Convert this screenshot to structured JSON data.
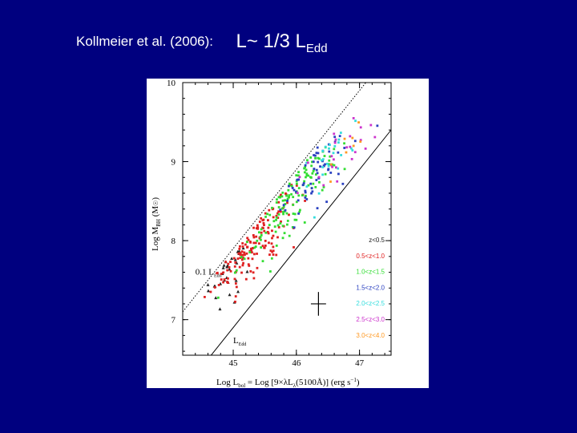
{
  "slide": {
    "citation": "Kollmeier et al. (2006):",
    "relation_main": "L~ 1/3 L",
    "relation_sub": "Edd"
  },
  "chart_data": {
    "type": "scatter",
    "xlabel": "Log Lbol = Log [9×λLλ(5100Å)]  (erg s⁻¹)",
    "xlabel_parts": {
      "pre": "Log L",
      "sub1": "bol",
      "mid": " = Log [9×λL",
      "sub2": "λ",
      "post": "(5100Å)]     (erg s",
      "sup": "−1",
      "end": ")"
    },
    "ylabel": "Log MBH (M☉)",
    "ylabel_parts": {
      "pre": "Log M",
      "sub": "BH",
      "post": " (M",
      "sun": "☉",
      "end": ")"
    },
    "xlim": [
      44.2,
      47.5
    ],
    "ylim": [
      6.55,
      10.0
    ],
    "xticks": [
      45,
      46,
      47
    ],
    "yticks": [
      7,
      8,
      9,
      10
    ],
    "lines": [
      {
        "name": "L_Edd",
        "x": [
          44.2,
          47.5
        ],
        "y": [
          6.1,
          9.4
        ],
        "style": "solid"
      },
      {
        "name": "0.1 L_Edd",
        "x": [
          44.2,
          47.5
        ],
        "y": [
          7.1,
          10.4
        ],
        "style": "dotted"
      }
    ],
    "line_labels": [
      {
        "text": "0.1 L",
        "sub": "Edd",
        "x": 44.4,
        "y": 7.57
      },
      {
        "text": "L",
        "sub": "Edd",
        "x": 45.0,
        "y": 6.7
      }
    ],
    "legend_position": "lower-right",
    "error_bar": {
      "x": 46.35,
      "y": 7.2,
      "xerr": 0.12,
      "yerr": 0.15
    },
    "series": [
      {
        "name": "z<0.5",
        "color": "#222222",
        "marker": "triangle",
        "n": 30,
        "cx": 44.95,
        "cy": 7.55,
        "sx": 0.22,
        "sy": 0.42,
        "slope": 0.6
      },
      {
        "name": "0.5<z<1.0",
        "color": "#e02020",
        "marker": "square",
        "n": 150,
        "cx": 45.35,
        "cy": 8.05,
        "sx": 0.35,
        "sy": 0.45,
        "slope": 0.7
      },
      {
        "name": "1.0<z<1.5",
        "color": "#33dd33",
        "marker": "square",
        "n": 130,
        "cx": 45.95,
        "cy": 8.55,
        "sx": 0.35,
        "sy": 0.45,
        "slope": 0.75
      },
      {
        "name": "1.5<z<2.0",
        "color": "#2a40c0",
        "marker": "square",
        "n": 60,
        "cx": 46.3,
        "cy": 8.85,
        "sx": 0.3,
        "sy": 0.4,
        "slope": 0.7
      },
      {
        "name": "2.0<z<2.5",
        "color": "#33dddd",
        "marker": "square",
        "n": 25,
        "cx": 46.55,
        "cy": 9.0,
        "sx": 0.25,
        "sy": 0.35,
        "slope": 0.6
      },
      {
        "name": "2.5<z<3.0",
        "color": "#cc33cc",
        "marker": "square",
        "n": 25,
        "cx": 46.65,
        "cy": 9.1,
        "sx": 0.25,
        "sy": 0.35,
        "slope": 0.6
      },
      {
        "name": "3.0<z<4.0",
        "color": "#ff9922",
        "marker": "square",
        "n": 8,
        "cx": 46.95,
        "cy": 9.3,
        "sx": 0.18,
        "sy": 0.25,
        "slope": 0.5
      }
    ]
  }
}
